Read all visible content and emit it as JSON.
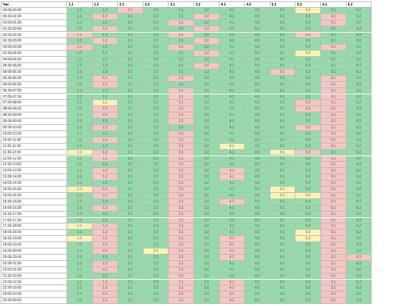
{
  "table": {
    "columns": [
      "Час",
      "1.1",
      "1.2",
      "2.1",
      "2.2",
      "3.1",
      "3.2",
      "4.1",
      "4.2",
      "5.1",
      "5.2",
      "6.1",
      "6.2"
    ],
    "colors": {
      "g": "#93dcaa",
      "p": "#f4c6c4",
      "y": "#fbf2b4"
    },
    "rows": [
      {
        "time": "00:00-00:30",
        "status": "ggpggggggygg"
      },
      {
        "time": "00:30-01:00",
        "status": "gpgggpggggpg"
      },
      {
        "time": "01:00-01:30",
        "status": "ggggpgggggpg"
      },
      {
        "time": "01:30-02:00",
        "status": "gpgggpgggggg"
      },
      {
        "time": "02:00-02:30",
        "status": "pgggpggggpgg"
      },
      {
        "time": "02:30-03:00",
        "status": "gpgggpgggggg"
      },
      {
        "time": "03:00-03:30",
        "status": "pgggpgggggpg"
      },
      {
        "time": "03:30-04:00",
        "status": "gggggpgggygg"
      },
      {
        "time": "04:00-04:30",
        "status": "gggggggggggg"
      },
      {
        "time": "04:30-05:00",
        "status": "gggggpgggggg"
      },
      {
        "time": "05:00-05:30",
        "status": "ggggggggpggg"
      },
      {
        "time": "05:30-06:00",
        "status": "gpggpgggggpg"
      },
      {
        "time": "06:00-06:30",
        "status": "gpggggggggpg"
      },
      {
        "time": "06:30-07:00",
        "status": "ggggpgggggpg"
      },
      {
        "time": "07:00-07:30",
        "status": "ggggpgggggpg"
      },
      {
        "time": "07:30-08:00",
        "status": "gyggpggggppg"
      },
      {
        "time": "08:00-08:30",
        "status": "gpggpggggppg"
      },
      {
        "time": "08:30-09:00",
        "status": "gpggpgggggpg"
      },
      {
        "time": "09:00-09:30",
        "status": "ggggpgggggpg"
      },
      {
        "time": "09:30-10:00",
        "status": "gpgggggggppg"
      },
      {
        "time": "10:00-10:30",
        "status": "ggggpgggggpg"
      },
      {
        "time": "10:30-11:00",
        "status": "gpggpgggggpg"
      },
      {
        "time": "11:00-11:30",
        "status": "ggggpgygggpg"
      },
      {
        "time": "11:30-12:00",
        "status": "ypggpgggypgg"
      },
      {
        "time": "12:00-12:30",
        "status": "gpggpgggggpg"
      },
      {
        "time": "12:30-13:00",
        "status": "ggggpgggggpg"
      },
      {
        "time": "13:00-13:30",
        "status": "gpggpgpgggpg"
      },
      {
        "time": "13:30-14:00",
        "status": "gpggpgpgggpg"
      },
      {
        "time": "14:00-14:30",
        "status": "ggggpgggggpg"
      },
      {
        "time": "14:30-15:00",
        "status": "ypggpgggygpg"
      },
      {
        "time": "15:00-15:30",
        "status": "gpggpgggyypg"
      },
      {
        "time": "15:30-16:00",
        "status": "ggggpgpgggpg"
      },
      {
        "time": "16:00-16:30",
        "status": "gpggpgggggpg"
      },
      {
        "time": "16:30-17:00",
        "status": "ggggpgggggpg"
      },
      {
        "time": "17:00-17:30",
        "status": "ggggpgggggpg"
      },
      {
        "time": "17:30-18:00",
        "status": "ypggpgggggpg"
      },
      {
        "time": "18:00-18:30",
        "status": "gpggpggggypg"
      },
      {
        "time": "18:30-19:00",
        "status": "ypggpgpggypg"
      },
      {
        "time": "19:00-19:30",
        "status": "gpggpgpgggpg"
      },
      {
        "time": "19:30-20:00",
        "status": "gpgypgpgggpg"
      },
      {
        "time": "20:00-20:30",
        "status": "ggggpgpgggpp"
      },
      {
        "time": "20:30-21:00",
        "status": "gpggpgggggpg"
      },
      {
        "time": "21:00-21:30",
        "status": "gpggpgggggpg"
      },
      {
        "time": "21:30-22:00",
        "status": "ggggpgggggpg"
      },
      {
        "time": "22:00-22:30",
        "status": "gpggpgpgggpg"
      },
      {
        "time": "22:30-23:00",
        "status": "gpggpgpgggpg"
      },
      {
        "time": "23:00-23:30",
        "status": "gpggpgpgggpg"
      },
      {
        "time": "23:30-00:00",
        "status": "gpggpgpgggpg"
      }
    ]
  }
}
